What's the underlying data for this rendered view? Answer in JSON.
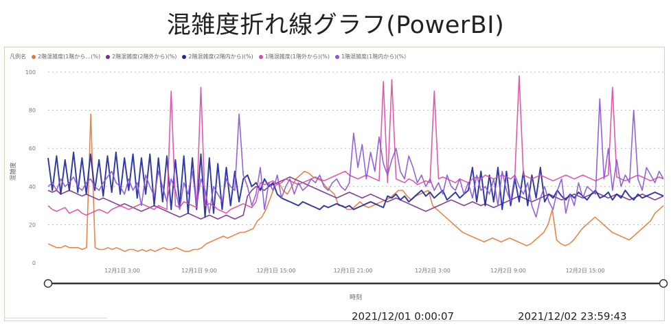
{
  "page_title": "混雑度折れ線グラフ(PowerBI)",
  "legend_heading": "凡例名",
  "slider": {
    "start_label": "2021/12/01 0:00:07",
    "end_label": "2021/12/02 23:59:43"
  },
  "chart_data": {
    "type": "line",
    "ylabel": "混雑度",
    "xlabel": "時刻",
    "ylim": [
      0,
      100
    ],
    "yticks": [
      0,
      20,
      40,
      60,
      80,
      100
    ],
    "xticks": [
      "12月1日 3:00",
      "12月1日 9:00",
      "12月1日 15:00",
      "12月1日 21:00",
      "12月2日 3:00",
      "12月2日 9:00",
      "12月2日 15:00"
    ],
    "grid": true,
    "legend_position": "top-left",
    "series": [
      {
        "name": "2階混雑度(1階から…(%)",
        "color": "#e8793b",
        "values": [
          10,
          9,
          8,
          8,
          9,
          8,
          8,
          8,
          7,
          8,
          78,
          8,
          7,
          7,
          8,
          7,
          8,
          7,
          6,
          7,
          7,
          6,
          7,
          6,
          7,
          6,
          7,
          8,
          7,
          7,
          8,
          7,
          6,
          6,
          7,
          7,
          8,
          10,
          11,
          12,
          13,
          14,
          13,
          14,
          15,
          16,
          16,
          17,
          18,
          22,
          24,
          28,
          34,
          40,
          42,
          38,
          36,
          40,
          44,
          46,
          48,
          47,
          45,
          44,
          43,
          40,
          38,
          36,
          30,
          30,
          28,
          28,
          30,
          32,
          30,
          29,
          30,
          31,
          32,
          33,
          34,
          36,
          38,
          38,
          35,
          33,
          35,
          36,
          37,
          38,
          30,
          28,
          26,
          24,
          22,
          20,
          18,
          16,
          15,
          14,
          13,
          12,
          11,
          12,
          13,
          12,
          11,
          12,
          13,
          12,
          11,
          10,
          9,
          10,
          12,
          14,
          16,
          20,
          28,
          12,
          10,
          9,
          10,
          12,
          15,
          18,
          20,
          22,
          24,
          22,
          20,
          18,
          16,
          15,
          14,
          13,
          12,
          14,
          16,
          18,
          20,
          22,
          26,
          28,
          30
        ]
      },
      {
        "name": "2階混雑度(2階外から)(%)",
        "color": "#7a2b8f",
        "values": [
          38,
          37,
          38,
          36,
          37,
          38,
          37,
          36,
          35,
          36,
          35,
          34,
          33,
          34,
          33,
          32,
          31,
          30,
          31,
          30,
          29,
          28,
          27,
          28,
          29,
          30,
          29,
          28,
          27,
          26,
          25,
          24,
          25,
          26,
          25,
          24,
          23,
          24,
          25,
          24,
          23,
          24,
          25,
          24,
          23,
          24,
          25,
          35,
          38,
          40,
          39,
          38,
          40,
          41,
          42,
          43,
          44,
          45,
          44,
          43,
          42,
          41,
          40,
          39,
          38,
          37,
          36,
          35,
          34,
          35,
          36,
          37,
          36,
          35,
          34,
          35,
          36,
          35,
          34,
          33,
          32,
          33,
          34,
          33,
          32,
          31,
          30,
          29,
          28,
          27,
          28,
          29,
          30,
          31,
          32,
          33,
          32,
          31,
          30,
          31,
          32,
          31,
          30,
          31,
          30,
          29,
          30,
          31,
          32,
          33,
          34,
          35,
          34,
          33,
          32,
          33,
          34,
          35,
          36,
          35,
          34,
          33,
          34,
          35,
          36,
          35,
          34,
          35,
          36,
          37,
          36,
          35,
          34,
          35,
          36,
          35,
          34,
          33,
          34,
          35,
          36,
          35,
          34,
          33,
          34,
          35
        ]
      },
      {
        "name": "2階混雑度(2階内から)(%)",
        "color": "#1f2a9e",
        "values": [
          55,
          38,
          56,
          36,
          54,
          38,
          58,
          37,
          55,
          36,
          57,
          38,
          54,
          35,
          56,
          37,
          58,
          36,
          55,
          38,
          57,
          34,
          55,
          36,
          57,
          30,
          55,
          32,
          56,
          28,
          54,
          30,
          56,
          26,
          55,
          28,
          57,
          24,
          55,
          26,
          52,
          28,
          50,
          30,
          48,
          32,
          44,
          46,
          40,
          42,
          38,
          44,
          40,
          42,
          36,
          34,
          33,
          32,
          31,
          30,
          32,
          31,
          30,
          29,
          28,
          30,
          29,
          30,
          31,
          30,
          29,
          30,
          28,
          29,
          30,
          31,
          32,
          31,
          30,
          29,
          35,
          34,
          36,
          33,
          35,
          32,
          34,
          36,
          38,
          35,
          37,
          34,
          36,
          38,
          33,
          35,
          37,
          34,
          36,
          38,
          50,
          32,
          48,
          30,
          46,
          32,
          50,
          28,
          48,
          30,
          44,
          32,
          48,
          30,
          46,
          34,
          50,
          32,
          36,
          34,
          38,
          35,
          33,
          36,
          34,
          37,
          35,
          33,
          36,
          38,
          34,
          35,
          37,
          33,
          36,
          34,
          38,
          35,
          33,
          36,
          34,
          35,
          36,
          37,
          36,
          35
        ]
      },
      {
        "name": "1階混雑度(1階外から)(%)",
        "color": "#e04aa5",
        "values": [
          30,
          28,
          27,
          28,
          29,
          26,
          27,
          28,
          26,
          25,
          26,
          27,
          28,
          27,
          26,
          28,
          29,
          30,
          29,
          28,
          29,
          30,
          31,
          30,
          29,
          28,
          30,
          29,
          28,
          90,
          30,
          29,
          32,
          31,
          30,
          29,
          92,
          30,
          31,
          30,
          28,
          27,
          26,
          28,
          29,
          30,
          31,
          30,
          29,
          32,
          42,
          41,
          42,
          43,
          41,
          42,
          44,
          43,
          42,
          41,
          42,
          43,
          44,
          45,
          44,
          43,
          44,
          45,
          46,
          47,
          48,
          46,
          45,
          44,
          45,
          46,
          45,
          44,
          43,
          95,
          42,
          96,
          44,
          43,
          42,
          44,
          43,
          41,
          42,
          43,
          42,
          90,
          44,
          45,
          44,
          43,
          42,
          44,
          43,
          42,
          44,
          45,
          44,
          46,
          45,
          44,
          45,
          46,
          45,
          44,
          46,
          98,
          46,
          45,
          44,
          45,
          46,
          45,
          44,
          43,
          44,
          45,
          46,
          45,
          44,
          45,
          46,
          45,
          44,
          43,
          44,
          45,
          46,
          92,
          45,
          44,
          43,
          44,
          45,
          46,
          45,
          44,
          43,
          44,
          45,
          44
        ]
      },
      {
        "name": "1階混雑度(1階内から)(%)",
        "color": "#8a55d8",
        "values": [
          40,
          42,
          38,
          44,
          40,
          42,
          45,
          40,
          38,
          42,
          44,
          40,
          38,
          42,
          45,
          48,
          42,
          40,
          36,
          44,
          38,
          42,
          30,
          46,
          40,
          35,
          48,
          40,
          32,
          44,
          38,
          28,
          42,
          36,
          48,
          30,
          44,
          38,
          26,
          40,
          36,
          32,
          44,
          40,
          38,
          78,
          46,
          40,
          30,
          36,
          50,
          28,
          42,
          38,
          46,
          34,
          40,
          44,
          36,
          42,
          38,
          40,
          44,
          42,
          46,
          40,
          38,
          42,
          44,
          40,
          38,
          42,
          68,
          50,
          62,
          44,
          58,
          48,
          66,
          52,
          46,
          54,
          60,
          48,
          44,
          56,
          50,
          42,
          46,
          40,
          44,
          38,
          42,
          36,
          46,
          40,
          38,
          44,
          36,
          42,
          34,
          46,
          38,
          40,
          36,
          44,
          30,
          48,
          38,
          32,
          46,
          40,
          36,
          42,
          30,
          24,
          34,
          40,
          32,
          28,
          38,
          44,
          26,
          36,
          30,
          42,
          34,
          40,
          38,
          36,
          86,
          44,
          60,
          38,
          54,
          40,
          46,
          42,
          80,
          44,
          38,
          50,
          46,
          42,
          48,
          44
        ]
      }
    ]
  }
}
